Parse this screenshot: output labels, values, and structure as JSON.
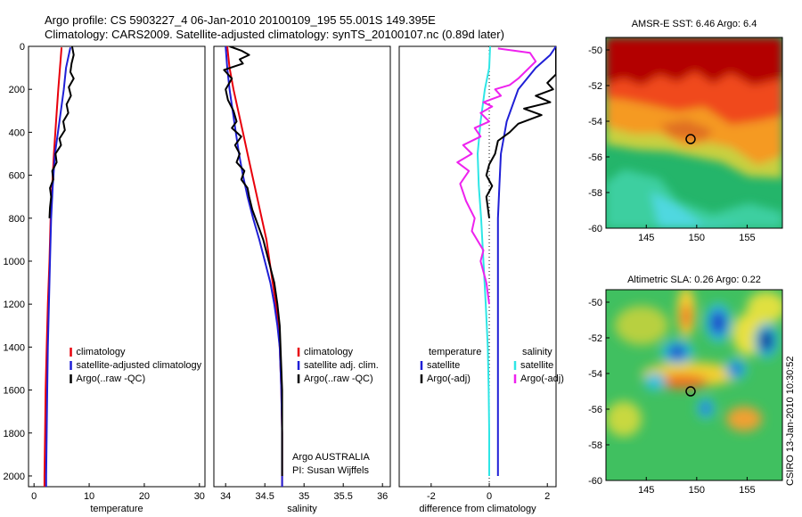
{
  "header": {
    "title_line1": "Argo profile: CS 5903227_4 06-Jan-2010 20100109_195 55.001S 149.395E",
    "title_line2": "Climatology: CARS2009. Satellite-adjusted climatology: synTS_20100107.nc (0.89d later)"
  },
  "side_label": "CSIRO 13-Jan-2010 10:30:52",
  "colors": {
    "red": "#e8000b",
    "blue": "#1f1fd6",
    "black": "#000000",
    "cyan": "#2ee6e6",
    "magenta": "#ee22ee"
  },
  "chart_data": [
    {
      "id": "temperature",
      "type": "line",
      "xlabel": "temperature",
      "ylabel": "",
      "xlim": [
        -1,
        31
      ],
      "ylim": [
        2050,
        0
      ],
      "xticks": [
        0,
        10,
        20,
        30
      ],
      "yticks": [
        0,
        200,
        400,
        600,
        800,
        1000,
        1200,
        1400,
        1600,
        1800,
        2000
      ],
      "legend": {
        "placement": "bottom-right",
        "entries": [
          {
            "label": "climatology",
            "color": "red"
          },
          {
            "label": "satellite-adjusted climatology",
            "color": "blue"
          },
          {
            "label": "Argo(..raw -QC)",
            "color": "black"
          }
        ]
      },
      "annotations": [],
      "series": [
        {
          "color": "red",
          "points": [
            [
              5.0,
              5
            ],
            [
              4.7,
              100
            ],
            [
              4.4,
              200
            ],
            [
              4.0,
              350
            ],
            [
              3.6,
              500
            ],
            [
              3.3,
              650
            ],
            [
              3.0,
              800
            ],
            [
              2.8,
              1000
            ],
            [
              2.5,
              1200
            ],
            [
              2.3,
              1400
            ],
            [
              2.1,
              1600
            ],
            [
              2.0,
              1800
            ],
            [
              1.9,
              2000
            ],
            [
              1.9,
              2060
            ]
          ]
        },
        {
          "color": "blue",
          "points": [
            [
              6.6,
              5
            ],
            [
              5.8,
              100
            ],
            [
              5.4,
              200
            ],
            [
              4.6,
              350
            ],
            [
              3.8,
              500
            ],
            [
              3.4,
              650
            ],
            [
              3.1,
              800
            ],
            [
              2.9,
              1000
            ],
            [
              2.7,
              1200
            ],
            [
              2.5,
              1400
            ],
            [
              2.4,
              1600
            ],
            [
              2.3,
              1800
            ],
            [
              2.2,
              2000
            ],
            [
              2.2,
              2060
            ]
          ]
        },
        {
          "color": "black",
          "points": [
            [
              6.9,
              0
            ],
            [
              7.2,
              40
            ],
            [
              6.8,
              80
            ],
            [
              6.6,
              120
            ],
            [
              7.2,
              150
            ],
            [
              6.3,
              190
            ],
            [
              6.7,
              230
            ],
            [
              5.9,
              270
            ],
            [
              6.2,
              310
            ],
            [
              5.3,
              350
            ],
            [
              5.6,
              390
            ],
            [
              4.6,
              430
            ],
            [
              4.9,
              460
            ],
            [
              3.9,
              500
            ],
            [
              4.1,
              540
            ],
            [
              3.3,
              580
            ],
            [
              3.5,
              620
            ],
            [
              2.9,
              660
            ],
            [
              3.1,
              700
            ],
            [
              2.9,
              750
            ],
            [
              2.8,
              800
            ]
          ]
        }
      ]
    },
    {
      "id": "salinity",
      "type": "line",
      "xlabel": "salinity",
      "ylabel": "",
      "xlim": [
        33.85,
        36.1
      ],
      "ylim": [
        2050,
        0
      ],
      "xticks": [
        34,
        34.5,
        35,
        35.5,
        36
      ],
      "yticks": [],
      "legend": {
        "placement": "bottom-right",
        "entries": [
          {
            "label": "climatology",
            "color": "red"
          },
          {
            "label": "satellite adj. clim.",
            "color": "blue"
          },
          {
            "label": "Argo(..raw -QC)",
            "color": "black"
          }
        ]
      },
      "annotations": [
        "Argo AUSTRALIA",
        "PI: Susan Wijffels"
      ],
      "series": [
        {
          "color": "red",
          "points": [
            [
              34.02,
              0
            ],
            [
              34.05,
              100
            ],
            [
              34.1,
              200
            ],
            [
              34.16,
              300
            ],
            [
              34.22,
              400
            ],
            [
              34.28,
              500
            ],
            [
              34.34,
              600
            ],
            [
              34.4,
              700
            ],
            [
              34.46,
              800
            ],
            [
              34.52,
              900
            ],
            [
              34.56,
              1000
            ],
            [
              34.6,
              1100
            ],
            [
              34.64,
              1200
            ],
            [
              34.67,
              1300
            ],
            [
              34.69,
              1400
            ],
            [
              34.7,
              1500
            ],
            [
              34.71,
              1600
            ],
            [
              34.72,
              1800
            ],
            [
              34.72,
              2060
            ]
          ]
        },
        {
          "color": "blue",
          "points": [
            [
              34.0,
              0
            ],
            [
              34.02,
              100
            ],
            [
              34.05,
              200
            ],
            [
              34.09,
              300
            ],
            [
              34.13,
              400
            ],
            [
              34.17,
              500
            ],
            [
              34.22,
              600
            ],
            [
              34.28,
              700
            ],
            [
              34.35,
              800
            ],
            [
              34.43,
              900
            ],
            [
              34.5,
              1000
            ],
            [
              34.57,
              1100
            ],
            [
              34.62,
              1200
            ],
            [
              34.66,
              1300
            ],
            [
              34.69,
              1400
            ],
            [
              34.7,
              1500
            ],
            [
              34.71,
              1600
            ],
            [
              34.72,
              1800
            ],
            [
              34.72,
              2060
            ]
          ]
        },
        {
          "color": "black",
          "points": [
            [
              34.05,
              0
            ],
            [
              34.2,
              20
            ],
            [
              34.3,
              40
            ],
            [
              34.18,
              60
            ],
            [
              34.22,
              80
            ],
            [
              33.98,
              110
            ],
            [
              34.08,
              150
            ],
            [
              34.0,
              200
            ],
            [
              34.03,
              250
            ],
            [
              34.1,
              300
            ],
            [
              34.14,
              350
            ],
            [
              34.08,
              380
            ],
            [
              34.2,
              420
            ],
            [
              34.12,
              460
            ],
            [
              34.18,
              500
            ],
            [
              34.14,
              540
            ],
            [
              34.24,
              580
            ],
            [
              34.2,
              620
            ],
            [
              34.28,
              660
            ],
            [
              34.3,
              700
            ],
            [
              34.34,
              760
            ],
            [
              34.4,
              820
            ],
            [
              34.48,
              900
            ],
            [
              34.55,
              1000
            ],
            [
              34.62,
              1100
            ],
            [
              34.66,
              1200
            ],
            [
              34.69,
              1300
            ],
            [
              34.7,
              1400
            ],
            [
              34.71,
              1500
            ],
            [
              34.72,
              1600
            ],
            [
              34.72,
              1800
            ],
            [
              34.72,
              2000
            ]
          ]
        }
      ]
    },
    {
      "id": "difference",
      "type": "line",
      "xlabel": "difference from climatology",
      "ylabel": "",
      "xlim": [
        -3.1,
        2.3
      ],
      "ylim": [
        2050,
        0
      ],
      "xticks": [
        -2,
        0,
        2
      ],
      "yticks": [],
      "zero_line": "dotted",
      "legend": {
        "placement": "bottom",
        "entries": [
          {
            "label": "temperature",
            "color": "none"
          },
          {
            "label": "satellite",
            "color": "blue"
          },
          {
            "label": "Argo(-adj)",
            "color": "black"
          },
          {
            "label": "salinity",
            "color": "none"
          },
          {
            "label": "satellite",
            "color": "cyan"
          },
          {
            "label": "Argo(-adj)",
            "color": "magenta"
          }
        ]
      },
      "annotations": [],
      "series": [
        {
          "color": "blue",
          "points": [
            [
              2.3,
              0
            ],
            [
              2.1,
              40
            ],
            [
              1.6,
              100
            ],
            [
              1.0,
              200
            ],
            [
              0.6,
              350
            ],
            [
              0.4,
              500
            ],
            [
              0.35,
              650
            ],
            [
              0.3,
              800
            ],
            [
              0.3,
              1000
            ],
            [
              0.3,
              1200
            ],
            [
              0.3,
              1400
            ],
            [
              0.3,
              1600
            ],
            [
              0.3,
              1800
            ],
            [
              0.3,
              2000
            ]
          ]
        },
        {
          "color": "cyan",
          "points": [
            [
              0.03,
              0
            ],
            [
              0.0,
              100
            ],
            [
              -0.15,
              200
            ],
            [
              -0.3,
              350
            ],
            [
              -0.4,
              500
            ],
            [
              -0.36,
              650
            ],
            [
              -0.28,
              800
            ],
            [
              -0.2,
              1000
            ],
            [
              -0.12,
              1200
            ],
            [
              -0.05,
              1400
            ],
            [
              -0.02,
              1600
            ],
            [
              0.0,
              1800
            ],
            [
              0.0,
              2000
            ]
          ]
        },
        {
          "color": "magenta",
          "points": [
            [
              0.3,
              10
            ],
            [
              1.4,
              30
            ],
            [
              1.6,
              70
            ],
            [
              1.0,
              150
            ],
            [
              0.7,
              180
            ],
            [
              0.2,
              200
            ],
            [
              0.4,
              230
            ],
            [
              -0.2,
              260
            ],
            [
              0.1,
              280
            ],
            [
              -0.3,
              310
            ],
            [
              0.0,
              350
            ],
            [
              -0.5,
              380
            ],
            [
              -0.3,
              420
            ],
            [
              -0.9,
              460
            ],
            [
              -0.6,
              500
            ],
            [
              -1.1,
              540
            ],
            [
              -0.7,
              580
            ],
            [
              -1.0,
              640
            ],
            [
              -0.8,
              720
            ],
            [
              -0.5,
              800
            ],
            [
              -0.6,
              860
            ],
            [
              -0.2,
              950
            ],
            [
              -0.3,
              1000
            ],
            [
              -0.1,
              1100
            ],
            [
              0.0,
              1200
            ]
          ]
        },
        {
          "color": "black",
          "points": [
            [
              2.3,
              10
            ],
            [
              2.3,
              80
            ],
            [
              2.3,
              130
            ],
            [
              2.0,
              170
            ],
            [
              2.2,
              200
            ],
            [
              1.6,
              230
            ],
            [
              2.1,
              260
            ],
            [
              1.2,
              290
            ],
            [
              1.8,
              320
            ],
            [
              1.0,
              360
            ],
            [
              0.7,
              400
            ],
            [
              0.3,
              440
            ],
            [
              0.2,
              500
            ],
            [
              0.0,
              550
            ],
            [
              -0.1,
              600
            ],
            [
              0.1,
              650
            ],
            [
              -0.1,
              700
            ],
            [
              0.0,
              800
            ]
          ]
        }
      ]
    }
  ],
  "maps": [
    {
      "id": "sst",
      "title": "AMSR-E SST: 6.46 Argo: 6.4",
      "lon": [
        141,
        158.5
      ],
      "lat": [
        -60,
        -49.3
      ],
      "xticks": [
        145,
        150,
        155
      ],
      "yticks": [
        -50,
        -52,
        -54,
        -56,
        -58,
        -60
      ],
      "marker": {
        "lon": 149.395,
        "lat": -55.001
      }
    },
    {
      "id": "sla",
      "title": "Altimetric SLA: 0.26 Argo: 0.22",
      "lon": [
        141,
        158.5
      ],
      "lat": [
        -60,
        -49.3
      ],
      "xticks": [
        145,
        150,
        155
      ],
      "yticks": [
        -50,
        -52,
        -54,
        -56,
        -58,
        -60
      ],
      "marker": {
        "lon": 149.395,
        "lat": -55.001
      }
    }
  ]
}
